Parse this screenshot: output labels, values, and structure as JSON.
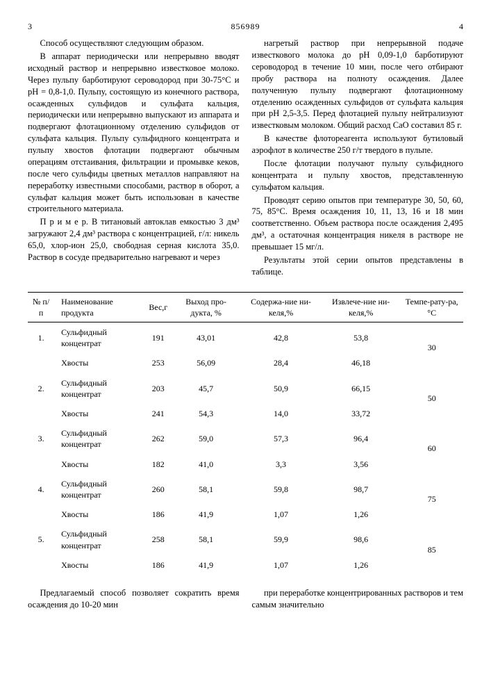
{
  "header": {
    "left_page": "3",
    "doc_number": "856989",
    "right_page": "4"
  },
  "left_col": {
    "p1": "Способ осуществляют следующим образом.",
    "p2": "В аппарат периодически или непрерывно вводят исходный раствор и непрерывно известковое молоко. Через пульпу барботируют сероводород при 30-75°С и pH = 0,8-1,0. Пульпу, состоящую из конечного раствора, осажденных сульфидов и сульфата кальция, периодически или непрерывно выпускают из аппарата и подвергают флотационному отделению сульфидов от сульфата кальция. Пульпу сульфидного концентрата и пульпу хвостов флотации подвергают обычным операциям отстаивания, фильтрации и промывке кеков, после чего сульфиды цветных металлов направляют на переработку известными способами, раствор в оборот, а сульфат кальция может быть использован в качестве строительного материала.",
    "p3": "П р и м е р. В титановый автоклав емкостью 3 дм³ загружают 2,4 дм³ раствора с концентрацией, г/л: никель 65,0, хлор-ион 25,0, свободная серная кислота 35,0. Раствор в сосуде предварительно нагревают и через"
  },
  "right_col": {
    "p1": "нагретый раствор при непрерывной подаче известкового молока до pH 0,09-1,0 барботируют сероводород в течение 10 мин, после чего отбирают пробу раствора на полноту осаждения. Далее полученную пульпу подвергают флотационному отделению осажденных сульфидов от сульфата кальция при pH 2,5-3,5. Перед флотацией пульпу нейтрализуют известковым молоком. Общий расход CaO составил 85 г.",
    "p2": "В качестве флотореагента используют бутиловый аэрофлот в количестве 250 г/т твердого в пульпе.",
    "p3": "После флотации получают пульпу сульфидного концентрата и пульпу хвостов, представленную сульфатом кальция.",
    "p4": "Проводят серию опытов при температуре 30, 50, 60, 75, 85°С. Время осаждения 10, 11, 13, 16 и 18 мин соответственно. Объем раствора после осаждения 2,495 дм³, а остаточная концентрация никеля в растворе не превышает 15 мг/л.",
    "p5": "Результаты этой серии опытов представлены в таблице."
  },
  "linenums": [
    "5",
    "10",
    "15",
    "20",
    "25"
  ],
  "table": {
    "headers": {
      "c1": "№ п/п",
      "c2": "Наименование продукта",
      "c3": "Вес,г",
      "c4": "Выход про-дукта, %",
      "c5": "Содержа-ние ни-келя,%",
      "c6": "Извлече-ние ни-келя,%",
      "c7": "Темпе-рату-ра, °С"
    },
    "rows": [
      {
        "n": "1.",
        "name": "Сульфидный концентрат",
        "w": "191",
        "y": "43,01",
        "c": "42,8",
        "e": "53,8",
        "t": ""
      },
      {
        "n": "",
        "name": "Хвосты",
        "w": "253",
        "y": "56,09",
        "c": "28,4",
        "e": "46,18",
        "t": "30"
      },
      {
        "n": "2.",
        "name": "Сульфидный концентрат",
        "w": "203",
        "y": "45,7",
        "c": "50,9",
        "e": "66,15",
        "t": ""
      },
      {
        "n": "",
        "name": "Хвосты",
        "w": "241",
        "y": "54,3",
        "c": "14,0",
        "e": "33,72",
        "t": "50"
      },
      {
        "n": "3.",
        "name": "Сульфидный концентрат",
        "w": "262",
        "y": "59,0",
        "c": "57,3",
        "e": "96,4",
        "t": ""
      },
      {
        "n": "",
        "name": "Хвосты",
        "w": "182",
        "y": "41,0",
        "c": "3,3",
        "e": "3,56",
        "t": "60"
      },
      {
        "n": "4.",
        "name": "Сульфидный концентрат",
        "w": "260",
        "y": "58,1",
        "c": "59,8",
        "e": "98,7",
        "t": ""
      },
      {
        "n": "",
        "name": "Хвосты",
        "w": "186",
        "y": "41,9",
        "c": "1,07",
        "e": "1,26",
        "t": "75"
      },
      {
        "n": "5.",
        "name": "Сульфидный концентрат",
        "w": "258",
        "y": "58,1",
        "c": "59,9",
        "e": "98,6",
        "t": ""
      },
      {
        "n": "",
        "name": "Хвосты",
        "w": "186",
        "y": "41,9",
        "c": "1,07",
        "e": "1,26",
        "t": "85"
      }
    ]
  },
  "bottom": {
    "left": "Предлагаемый способ позволяет сократить время осаждения до 10-20 мин",
    "right": "при переработке концентрированных растворов и тем самым значительно"
  }
}
